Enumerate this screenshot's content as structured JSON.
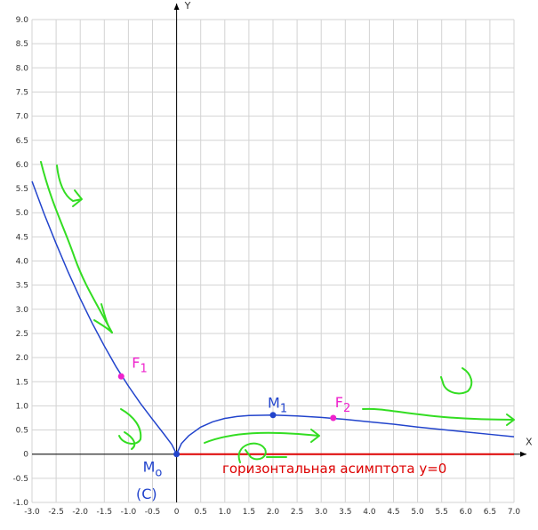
{
  "chart_data": {
    "type": "line",
    "title": "",
    "xlabel": "X",
    "ylabel": "Y",
    "xlim": [
      -3.0,
      7.0
    ],
    "ylim": [
      -1.0,
      9.0
    ],
    "grid": true,
    "x_ticks": [
      "-3.0",
      "-2.5",
      "-2.0",
      "-1.5",
      "-1.0",
      "-0.5",
      "0",
      "0.5",
      "1.0",
      "1.5",
      "2.0",
      "2.5",
      "3.0",
      "3.5",
      "4.0",
      "4.5",
      "5.0",
      "5.5",
      "6.0",
      "6.5",
      "7.0"
    ],
    "y_ticks": [
      "-1.0",
      "-0.5",
      "0",
      "0.5",
      "1.0",
      "1.5",
      "2.0",
      "2.5",
      "3.0",
      "3.5",
      "4.0",
      "4.5",
      "5.0",
      "5.5",
      "6.0",
      "6.5",
      "7.0",
      "7.5",
      "8.0",
      "8.5",
      "9.0"
    ],
    "series": [
      {
        "color": "#2244cc",
        "x": [
          -3.0,
          -2.75,
          -2.5,
          -2.25,
          -2.0,
          -1.75,
          -1.5,
          -1.25,
          -1.0,
          -0.75,
          -0.5,
          -0.25,
          -0.1,
          0,
          0.1,
          0.25,
          0.5,
          0.75,
          1.0,
          1.25,
          1.5,
          2.0,
          2.5,
          3.0,
          3.5,
          4.0,
          4.5,
          5.0,
          5.5,
          6.0,
          6.5,
          7.0
        ],
        "y": [
          5.65,
          4.98,
          4.36,
          3.77,
          3.22,
          2.71,
          2.24,
          1.8,
          1.41,
          1.05,
          0.72,
          0.4,
          0.2,
          0,
          0.22,
          0.38,
          0.56,
          0.67,
          0.74,
          0.78,
          0.8,
          0.81,
          0.79,
          0.76,
          0.72,
          0.67,
          0.62,
          0.56,
          0.51,
          0.46,
          0.41,
          0.36
        ]
      }
    ],
    "asymptote": {
      "color": "#dd0000",
      "y": 0,
      "x_from": 0,
      "x_to": 7.0,
      "label": "горизонтальная асимптота y=0"
    },
    "points": [
      {
        "name": "M",
        "sub": "o",
        "x": 0,
        "y": 0,
        "color": "#2244cc"
      },
      {
        "name": "M",
        "sub": "1",
        "x": 2.0,
        "y": 0.81,
        "color": "#2244cc"
      },
      {
        "name": "F",
        "sub": "1",
        "x": -1.15,
        "y": 1.61,
        "color": "#ee22cc"
      },
      {
        "name": "F",
        "sub": "2",
        "x": 3.25,
        "y": 0.75,
        "color": "#ee22cc"
      }
    ],
    "annotations": [
      {
        "text": "(C)",
        "color": "#2244cc"
      }
    ],
    "sketch_color": "#33dd22"
  }
}
